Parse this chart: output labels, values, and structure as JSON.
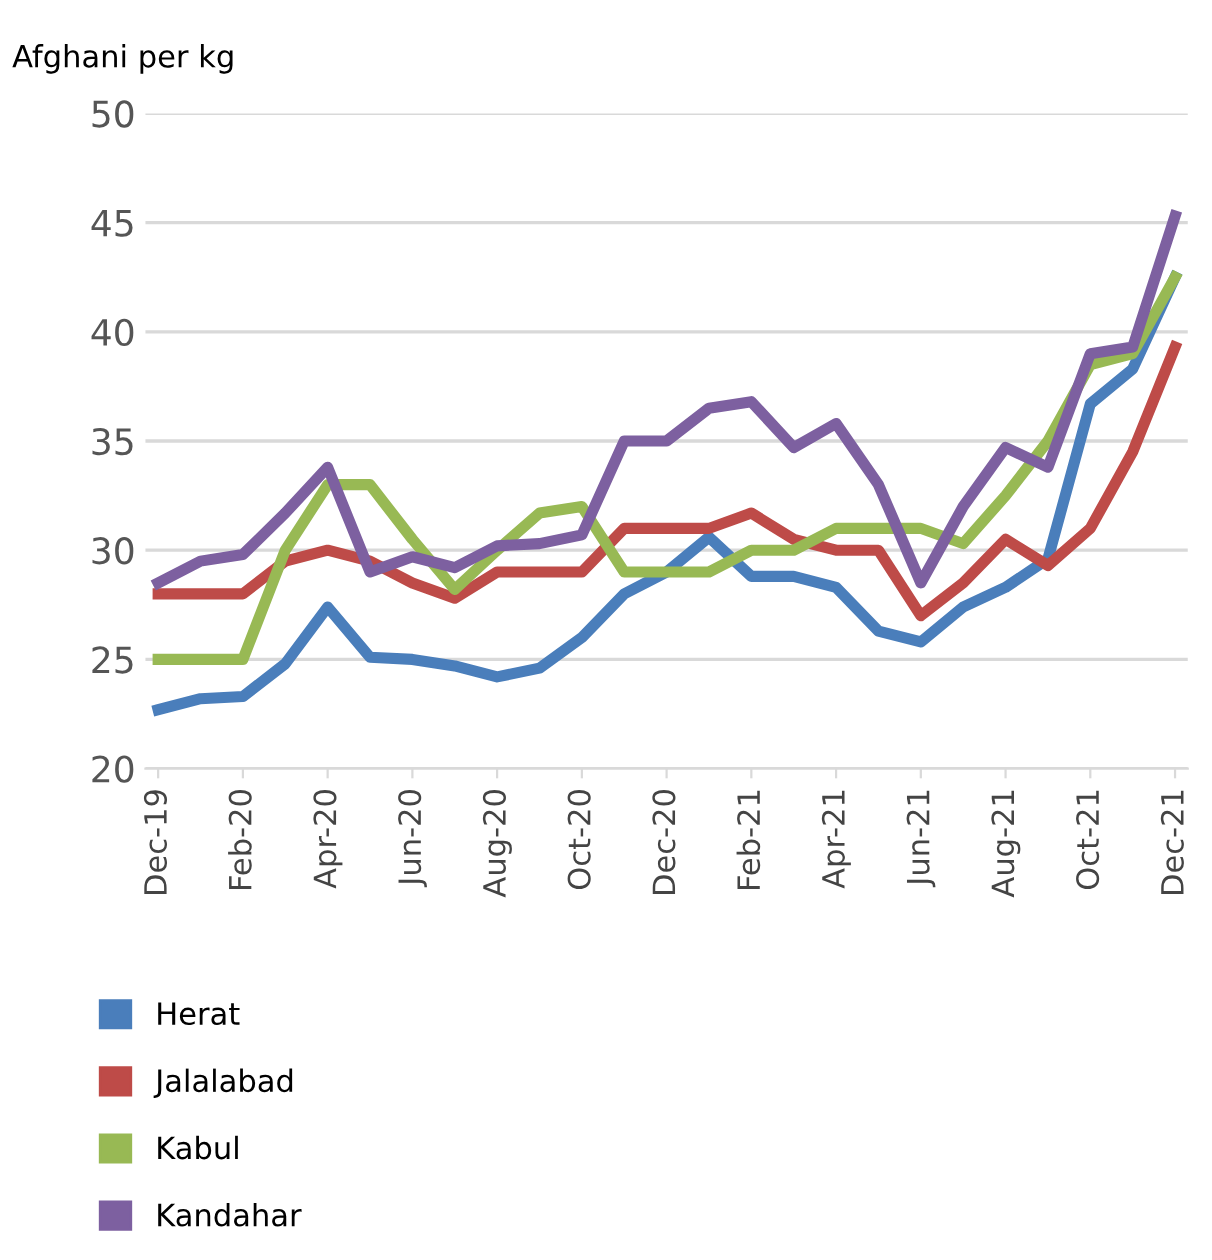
{
  "chart_data": {
    "type": "line",
    "ylabel": "Afghani per kg",
    "categories": [
      "Dec-19",
      null,
      "Feb-20",
      null,
      "Apr-20",
      null,
      "Jun-20",
      null,
      "Aug-20",
      null,
      "Oct-20",
      null,
      "Dec-20",
      null,
      "Feb-21",
      null,
      "Apr-21",
      null,
      "Jun-21",
      null,
      "Aug-21",
      null,
      "Oct-21",
      null,
      "Dec-21"
    ],
    "series": [
      {
        "name": "Herat",
        "color": "#4a7ebb",
        "values": [
          22.7,
          23.2,
          23.3,
          24.8,
          27.4,
          25.1,
          25.0,
          24.7,
          24.2,
          24.6,
          26.0,
          28.0,
          29.0,
          30.6,
          28.8,
          28.8,
          28.3,
          26.3,
          25.8,
          27.4,
          28.3,
          29.6,
          36.7,
          38.3,
          42.5
        ]
      },
      {
        "name": "Jalalabad",
        "color": "#be4b48",
        "values": [
          28,
          28,
          28,
          29.5,
          30,
          29.5,
          28.5,
          27.8,
          29,
          29,
          29,
          31,
          31,
          31,
          31.7,
          30.5,
          30,
          30,
          27,
          28.5,
          30.5,
          29.3,
          31,
          34.5,
          39.3
        ]
      },
      {
        "name": "Kabul",
        "color": "#98b954",
        "values": [
          25,
          25,
          25,
          30,
          33,
          33,
          30.5,
          28.2,
          30,
          31.7,
          32,
          29,
          29,
          29,
          30,
          30,
          31,
          31,
          31,
          30.3,
          32.5,
          35,
          38.5,
          39,
          42.5
        ]
      },
      {
        "name": "Kandahar",
        "color": "#7d60a0",
        "values": [
          28.5,
          29.5,
          29.8,
          31.7,
          33.8,
          29,
          29.7,
          29.2,
          30.2,
          30.3,
          30.7,
          35,
          35,
          36.5,
          36.8,
          34.7,
          35.8,
          33,
          28.5,
          32,
          34.7,
          33.8,
          39,
          39.3,
          45.3
        ]
      }
    ],
    "ylim": [
      20,
      50
    ],
    "yticks": [
      20,
      25,
      30,
      35,
      40,
      45,
      50
    ],
    "grid": "y",
    "legend": "bottom",
    "marker": "none",
    "line_style": "solid"
  }
}
